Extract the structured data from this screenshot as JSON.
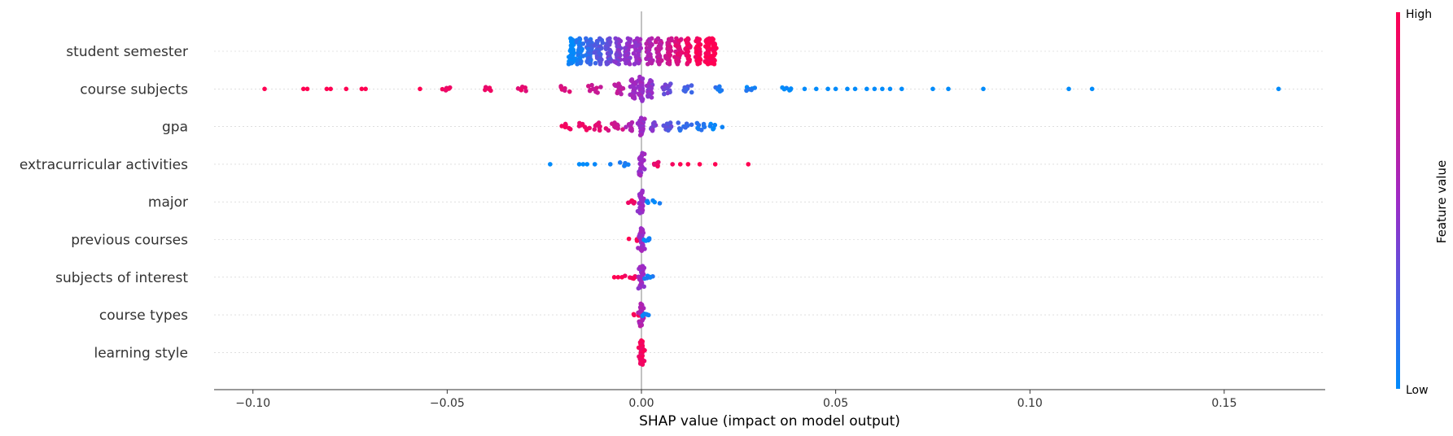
{
  "chart_data": {
    "type": "scatter",
    "subtype": "shap-beeswarm-summary",
    "xlabel": "SHAP value (impact on model output)",
    "xlim": [
      -0.11,
      0.176
    ],
    "xticks": [
      {
        "value": -0.1,
        "label": "−0.10"
      },
      {
        "value": -0.05,
        "label": "−0.05"
      },
      {
        "value": 0.0,
        "label": "0.00"
      },
      {
        "value": 0.05,
        "label": "0.05"
      },
      {
        "value": 0.1,
        "label": "0.10"
      },
      {
        "value": 0.15,
        "label": "0.15"
      }
    ],
    "colorbar": {
      "title": "Feature value",
      "high_label": "High",
      "low_label": "Low",
      "low_color": "#008bfb",
      "mid_color": "#9d2bc6",
      "high_color": "#ff0052"
    },
    "zero_line_color": "#999999",
    "features": [
      {
        "name": "student semester",
        "clusters": [
          {
            "x": -0.018,
            "v": 0.0,
            "spread": 0.75
          },
          {
            "x": -0.016,
            "v": 0.08,
            "spread": 0.75
          },
          {
            "x": -0.0135,
            "v": 0.17,
            "spread": 0.75
          },
          {
            "x": -0.011,
            "v": 0.25,
            "spread": 0.75
          },
          {
            "x": -0.0085,
            "v": 0.33,
            "spread": 0.75
          },
          {
            "x": -0.006,
            "v": 0.42,
            "spread": 0.75
          },
          {
            "x": -0.0035,
            "v": 0.46,
            "spread": 0.75
          },
          {
            "x": -0.001,
            "v": 0.5,
            "spread": 0.75
          },
          {
            "x": 0.002,
            "v": 0.58,
            "spread": 0.75
          },
          {
            "x": 0.0045,
            "v": 0.67,
            "spread": 0.75
          },
          {
            "x": 0.007,
            "v": 0.75,
            "spread": 0.75
          },
          {
            "x": 0.0095,
            "v": 0.83,
            "spread": 0.75
          },
          {
            "x": 0.012,
            "v": 0.92,
            "spread": 0.75
          },
          {
            "x": 0.0145,
            "v": 0.96,
            "spread": 0.75
          },
          {
            "x": 0.017,
            "v": 0.98,
            "spread": 0.75
          },
          {
            "x": 0.0185,
            "v": 1.0,
            "spread": 0.75
          }
        ],
        "points": []
      },
      {
        "name": "course subjects",
        "clusters": [
          {
            "x": -0.05,
            "v": 0.92,
            "spread": 0.08
          },
          {
            "x": -0.04,
            "v": 0.9,
            "spread": 0.1
          },
          {
            "x": -0.03,
            "v": 0.88,
            "spread": 0.12
          },
          {
            "x": -0.02,
            "v": 0.82,
            "spread": 0.16
          },
          {
            "x": -0.012,
            "v": 0.75,
            "spread": 0.22
          },
          {
            "x": -0.006,
            "v": 0.65,
            "spread": 0.3
          },
          {
            "x": -0.002,
            "v": 0.52,
            "spread": 0.55
          },
          {
            "x": 0.0,
            "v": 0.5,
            "spread": 0.7
          },
          {
            "x": 0.002,
            "v": 0.45,
            "spread": 0.5
          },
          {
            "x": 0.006,
            "v": 0.35,
            "spread": 0.3
          },
          {
            "x": 0.012,
            "v": 0.22,
            "spread": 0.2
          },
          {
            "x": 0.02,
            "v": 0.12,
            "spread": 0.14
          },
          {
            "x": 0.028,
            "v": 0.05,
            "spread": 0.1
          },
          {
            "x": 0.038,
            "v": 0.02,
            "spread": 0.08
          }
        ],
        "points": [
          {
            "x": -0.097,
            "v": 1.0
          },
          {
            "x": -0.087,
            "v": 1.0
          },
          {
            "x": -0.086,
            "v": 1.0
          },
          {
            "x": -0.081,
            "v": 1.0
          },
          {
            "x": -0.08,
            "v": 1.0
          },
          {
            "x": -0.076,
            "v": 1.0
          },
          {
            "x": -0.072,
            "v": 1.0
          },
          {
            "x": -0.071,
            "v": 1.0
          },
          {
            "x": -0.057,
            "v": 1.0
          },
          {
            "x": 0.042,
            "v": 0.0
          },
          {
            "x": 0.045,
            "v": 0.0
          },
          {
            "x": 0.048,
            "v": 0.0
          },
          {
            "x": 0.05,
            "v": 0.0
          },
          {
            "x": 0.053,
            "v": 0.0
          },
          {
            "x": 0.055,
            "v": 0.0
          },
          {
            "x": 0.058,
            "v": 0.0
          },
          {
            "x": 0.06,
            "v": 0.0
          },
          {
            "x": 0.062,
            "v": 0.0
          },
          {
            "x": 0.064,
            "v": 0.0
          },
          {
            "x": 0.067,
            "v": 0.0
          },
          {
            "x": 0.075,
            "v": 0.0
          },
          {
            "x": 0.079,
            "v": 0.0
          },
          {
            "x": 0.088,
            "v": 0.0
          },
          {
            "x": 0.11,
            "v": 0.0
          },
          {
            "x": 0.116,
            "v": 0.0
          },
          {
            "x": 0.164,
            "v": 0.0
          }
        ]
      },
      {
        "name": "gpa",
        "clusters": [
          {
            "x": -0.019,
            "v": 0.95,
            "spread": 0.15
          },
          {
            "x": -0.015,
            "v": 0.92,
            "spread": 0.2
          },
          {
            "x": -0.011,
            "v": 0.85,
            "spread": 0.22
          },
          {
            "x": -0.007,
            "v": 0.75,
            "spread": 0.22
          },
          {
            "x": -0.003,
            "v": 0.62,
            "spread": 0.24
          },
          {
            "x": 0.0,
            "v": 0.5,
            "spread": 0.5
          },
          {
            "x": 0.003,
            "v": 0.4,
            "spread": 0.24
          },
          {
            "x": 0.007,
            "v": 0.3,
            "spread": 0.22
          },
          {
            "x": 0.011,
            "v": 0.18,
            "spread": 0.22
          },
          {
            "x": 0.015,
            "v": 0.08,
            "spread": 0.2
          },
          {
            "x": 0.019,
            "v": 0.02,
            "spread": 0.15
          }
        ],
        "points": []
      },
      {
        "name": "extracurricular activities",
        "clusters": [
          {
            "x": -0.004,
            "v": 0.1,
            "spread": 0.1
          },
          {
            "x": 0.0,
            "v": 0.5,
            "spread": 0.65
          },
          {
            "x": 0.004,
            "v": 0.9,
            "spread": 0.12
          }
        ],
        "points": [
          {
            "x": -0.0235,
            "v": 0.0
          },
          {
            "x": -0.016,
            "v": 0.0
          },
          {
            "x": -0.015,
            "v": 0.0
          },
          {
            "x": -0.014,
            "v": 0.0
          },
          {
            "x": -0.012,
            "v": 0.02
          },
          {
            "x": -0.008,
            "v": 0.05
          },
          {
            "x": 0.008,
            "v": 0.95
          },
          {
            "x": 0.01,
            "v": 1.0
          },
          {
            "x": 0.012,
            "v": 1.0
          },
          {
            "x": 0.015,
            "v": 1.0
          },
          {
            "x": 0.019,
            "v": 1.0
          },
          {
            "x": 0.0275,
            "v": 1.0
          }
        ]
      },
      {
        "name": "major",
        "clusters": [
          {
            "x": -0.003,
            "v": 0.95,
            "spread": 0.08
          },
          {
            "x": 0.0,
            "v": 0.5,
            "spread": 0.65
          },
          {
            "x": 0.003,
            "v": 0.05,
            "spread": 0.08
          }
        ],
        "points": []
      },
      {
        "name": "previous courses",
        "clusters": [
          {
            "x": -0.0015,
            "v": 0.95,
            "spread": 0.07
          },
          {
            "x": 0.0,
            "v": 0.5,
            "spread": 0.65
          },
          {
            "x": 0.0015,
            "v": 0.05,
            "spread": 0.07
          }
        ],
        "points": []
      },
      {
        "name": "subjects of interest",
        "clusters": [
          {
            "x": -0.003,
            "v": 0.95,
            "spread": 0.08
          },
          {
            "x": 0.0,
            "v": 0.5,
            "spread": 0.65
          },
          {
            "x": 0.002,
            "v": 0.05,
            "spread": 0.08
          }
        ],
        "points": [
          {
            "x": -0.007,
            "v": 1.0
          },
          {
            "x": -0.006,
            "v": 1.0
          },
          {
            "x": -0.005,
            "v": 1.0
          }
        ]
      },
      {
        "name": "course types",
        "clusters": [
          {
            "x": -0.001,
            "v": 0.95,
            "spread": 0.06
          },
          {
            "x": 0.0,
            "v": 0.6,
            "spread": 0.65
          },
          {
            "x": 0.0012,
            "v": 0.05,
            "spread": 0.06
          }
        ],
        "points": []
      },
      {
        "name": "learning style",
        "clusters": [
          {
            "x": 0.0,
            "v": 0.95,
            "spread": 0.7
          }
        ],
        "points": []
      }
    ]
  }
}
